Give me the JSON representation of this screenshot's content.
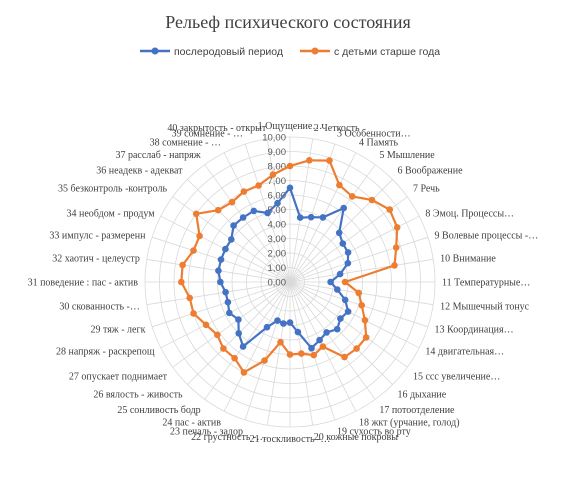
{
  "chart_data": {
    "type": "radar",
    "title": "Рельеф психического состояния",
    "legend_position": "top",
    "grid": true,
    "rlim": [
      0,
      10
    ],
    "r_ticks": [
      "0,00",
      "1,00",
      "2,00",
      "3,00",
      "4,00",
      "5,00",
      "6,00",
      "7,00",
      "8,00",
      "9,00",
      "10,00"
    ],
    "categories": [
      "1 Ощущение…",
      "2 Четкость",
      "3 Особенности…",
      "4 Память",
      "5 Мышление",
      "6 Воображение",
      "7 Речь",
      "8 Эмоц. Процессы…",
      "9 Волевые процессы -…",
      "10 Внимание",
      "11 Температурные…",
      "12 Мышечный тонус",
      "13 Координация…",
      "14 двигательная…",
      "15 ссс увеличение…",
      "16 дыхание",
      "17 потоотделение",
      "18 жкт (урчание, голод)",
      "19 сухость во рту",
      "20 кожные покровы",
      "21 тоскливость -…",
      "22 грустность -…",
      "23 печаль - задор",
      "24 пас - актив",
      "25 сонливость бодр",
      "26 вялость - живость",
      "27 опускает поднимает",
      "28 напряж - раскрепощ",
      "29 тяж - легк",
      "30 скованность -…",
      "31 поведение : пас - актив",
      "32 хаотич - целеустр",
      "33 импулс - размеренн",
      "34 необдом - продум",
      "35 безконтроль -контроль",
      "36 неадекв - адекват",
      "37 расслаб - напряж",
      "38 сомнение - …",
      "39 сомнение - …",
      "40 закрытость - открыт"
    ],
    "series": [
      {
        "name": "послеродовый период",
        "color": "#4472c4",
        "values": [
          6.5,
          4.5,
          4.7,
          5.0,
          6.3,
          4.8,
          4.5,
          4.5,
          4.2,
          3.5,
          2.8,
          3.3,
          4.0,
          4.5,
          4.3,
          4.6,
          4.3,
          4.5,
          4.8,
          3.5,
          2.8,
          2.9,
          2.8,
          3.5,
          5.5,
          5.0,
          4.4,
          4.7,
          4.5,
          4.5,
          4.8,
          5.0,
          5.0,
          5.0,
          5.0,
          5.5,
          5.5,
          5.5,
          5.0,
          5.5
        ]
      },
      {
        "name": "с детьми старше года",
        "color": "#ed7d31",
        "values": [
          8.0,
          8.5,
          8.8,
          7.5,
          7.3,
          8.0,
          8.5,
          8.3,
          7.7,
          7.3,
          3.8,
          4.8,
          5.2,
          5.8,
          6.5,
          6.5,
          6.4,
          5.0,
          5.3,
          5.0,
          5.0,
          4.2,
          5.7,
          7.0,
          6.5,
          6.5,
          6.2,
          6.5,
          7.0,
          7.0,
          7.5,
          7.5,
          7.0,
          7.0,
          8.0,
          7.0,
          6.8,
          7.0,
          7.0,
          7.5
        ]
      }
    ]
  }
}
